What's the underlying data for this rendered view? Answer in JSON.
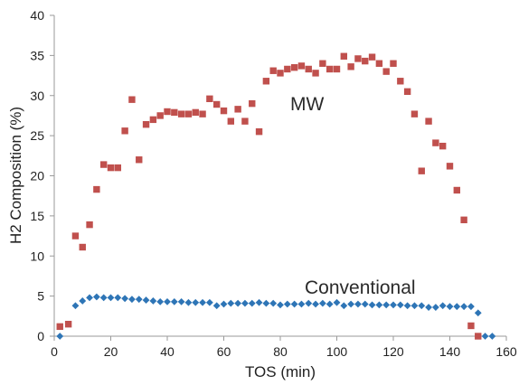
{
  "chart_data": {
    "type": "scatter",
    "xlabel": "TOS (min)",
    "ylabel": "H2 Composition (%)",
    "xlim": [
      0,
      160
    ],
    "ylim": [
      0,
      40
    ],
    "x_ticks": [
      0,
      20,
      40,
      60,
      80,
      100,
      120,
      140,
      160
    ],
    "y_ticks": [
      0,
      5,
      10,
      15,
      20,
      25,
      30,
      35,
      40
    ],
    "grid": false,
    "legend": "none",
    "series": [
      {
        "name": "MW",
        "color": "#c0504d",
        "marker": "square",
        "points": [
          [
            2,
            1.2
          ],
          [
            5,
            1.5
          ],
          [
            7.5,
            12.5
          ],
          [
            10,
            11.1
          ],
          [
            12.5,
            13.9
          ],
          [
            15,
            18.3
          ],
          [
            17.5,
            21.4
          ],
          [
            20,
            21.0
          ],
          [
            22.5,
            21.0
          ],
          [
            25,
            25.6
          ],
          [
            27.5,
            29.5
          ],
          [
            30,
            22.0
          ],
          [
            32.5,
            26.4
          ],
          [
            35,
            27.0
          ],
          [
            37.5,
            27.5
          ],
          [
            40,
            28.0
          ],
          [
            42.5,
            27.9
          ],
          [
            45,
            27.7
          ],
          [
            47.5,
            27.7
          ],
          [
            50,
            27.9
          ],
          [
            52.5,
            27.7
          ],
          [
            55,
            29.6
          ],
          [
            57.5,
            28.9
          ],
          [
            60,
            28.1
          ],
          [
            62.5,
            26.8
          ],
          [
            65,
            28.3
          ],
          [
            67.5,
            26.8
          ],
          [
            70,
            29.0
          ],
          [
            72.5,
            25.5
          ],
          [
            75,
            31.8
          ],
          [
            77.5,
            33.1
          ],
          [
            80,
            32.8
          ],
          [
            82.5,
            33.3
          ],
          [
            85,
            33.5
          ],
          [
            87.5,
            33.7
          ],
          [
            90,
            33.3
          ],
          [
            92.5,
            32.8
          ],
          [
            95,
            34.0
          ],
          [
            97.5,
            33.3
          ],
          [
            100,
            33.3
          ],
          [
            102.5,
            34.9
          ],
          [
            105,
            33.6
          ],
          [
            107.5,
            34.6
          ],
          [
            110,
            34.3
          ],
          [
            112.5,
            34.8
          ],
          [
            115,
            34.0
          ],
          [
            117.5,
            33.0
          ],
          [
            120,
            34.0
          ],
          [
            122.5,
            31.8
          ],
          [
            125,
            30.5
          ],
          [
            127.5,
            27.7
          ],
          [
            130,
            20.6
          ],
          [
            132.5,
            26.8
          ],
          [
            135,
            24.1
          ],
          [
            137.5,
            23.7
          ],
          [
            140,
            21.2
          ],
          [
            142.5,
            18.2
          ],
          [
            145,
            14.5
          ],
          [
            147.5,
            1.3
          ],
          [
            150,
            0.0
          ]
        ]
      },
      {
        "name": "Conventional",
        "color": "#2e75b6",
        "marker": "diamond",
        "points": [
          [
            2,
            0.0
          ],
          [
            7.5,
            3.8
          ],
          [
            10,
            4.4
          ],
          [
            12.5,
            4.8
          ],
          [
            15,
            4.9
          ],
          [
            17.5,
            4.8
          ],
          [
            20,
            4.8
          ],
          [
            22.5,
            4.8
          ],
          [
            25,
            4.7
          ],
          [
            27.5,
            4.6
          ],
          [
            30,
            4.6
          ],
          [
            32.5,
            4.5
          ],
          [
            35,
            4.4
          ],
          [
            37.5,
            4.3
          ],
          [
            40,
            4.3
          ],
          [
            42.5,
            4.3
          ],
          [
            45,
            4.3
          ],
          [
            47.5,
            4.2
          ],
          [
            50,
            4.2
          ],
          [
            52.5,
            4.2
          ],
          [
            55,
            4.2
          ],
          [
            57.5,
            3.8
          ],
          [
            60,
            4.0
          ],
          [
            62.5,
            4.1
          ],
          [
            65,
            4.1
          ],
          [
            67.5,
            4.1
          ],
          [
            70,
            4.1
          ],
          [
            72.5,
            4.2
          ],
          [
            75,
            4.1
          ],
          [
            77.5,
            4.1
          ],
          [
            80,
            3.9
          ],
          [
            82.5,
            4.0
          ],
          [
            85,
            4.0
          ],
          [
            87.5,
            4.0
          ],
          [
            90,
            4.1
          ],
          [
            92.5,
            4.0
          ],
          [
            95,
            4.1
          ],
          [
            97.5,
            4.0
          ],
          [
            100,
            4.2
          ],
          [
            102.5,
            3.8
          ],
          [
            105,
            4.0
          ],
          [
            107.5,
            4.0
          ],
          [
            110,
            4.0
          ],
          [
            112.5,
            3.9
          ],
          [
            115,
            3.9
          ],
          [
            117.5,
            3.9
          ],
          [
            120,
            3.9
          ],
          [
            122.5,
            3.9
          ],
          [
            125,
            3.8
          ],
          [
            127.5,
            3.8
          ],
          [
            130,
            3.8
          ],
          [
            132.5,
            3.6
          ],
          [
            135,
            3.6
          ],
          [
            137.5,
            3.8
          ],
          [
            140,
            3.7
          ],
          [
            142.5,
            3.7
          ],
          [
            145,
            3.7
          ],
          [
            147.5,
            3.7
          ],
          [
            150,
            2.9
          ],
          [
            152.5,
            0.0
          ],
          [
            155,
            0.0
          ]
        ]
      }
    ]
  }
}
